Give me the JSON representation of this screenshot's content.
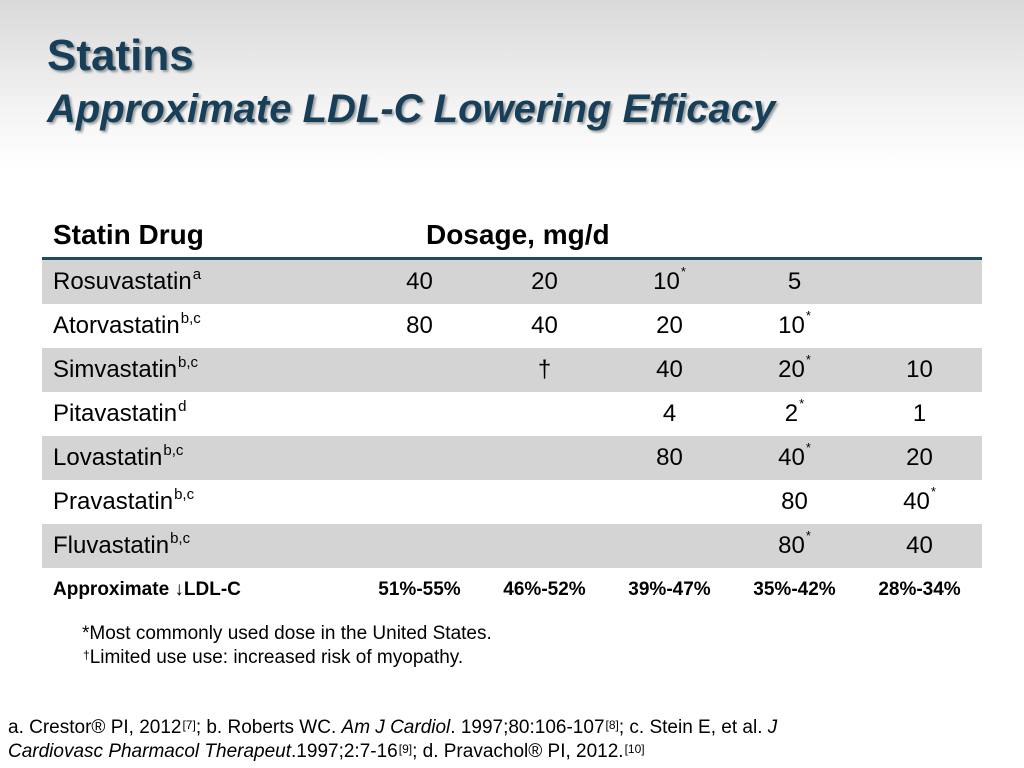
{
  "title": {
    "line1": "Statins",
    "line2": "Approximate LDL-C Lowering Efficacy"
  },
  "table": {
    "header_drug": "Statin Drug",
    "header_dosage": "Dosage, mg/d",
    "rows": [
      {
        "drug": "Rosuvastatin",
        "sup": "a",
        "doses": [
          "40",
          "20",
          "10",
          "5",
          ""
        ],
        "starred": [
          false,
          false,
          true,
          false,
          false
        ],
        "shaded": true
      },
      {
        "drug": "Atorvastatin",
        "sup": "b,c",
        "doses": [
          "80",
          "40",
          "20",
          "10",
          ""
        ],
        "starred": [
          false,
          false,
          false,
          true,
          false
        ],
        "shaded": false
      },
      {
        "drug": "Simvastatin",
        "sup": "b,c",
        "doses": [
          "",
          "†",
          "40",
          "20",
          "10"
        ],
        "starred": [
          false,
          false,
          false,
          true,
          false
        ],
        "shaded": true
      },
      {
        "drug": "Pitavastatin",
        "sup": "d",
        "doses": [
          "",
          "",
          "4",
          "2",
          "1"
        ],
        "starred": [
          false,
          false,
          false,
          true,
          false
        ],
        "shaded": false
      },
      {
        "drug": "Lovastatin",
        "sup": "b,c",
        "doses": [
          "",
          "",
          "80",
          "40",
          "20"
        ],
        "starred": [
          false,
          false,
          false,
          true,
          false
        ],
        "shaded": true
      },
      {
        "drug": "Pravastatin",
        "sup": "b,c",
        "doses": [
          "",
          "",
          "",
          "80",
          "40"
        ],
        "starred": [
          false,
          false,
          false,
          false,
          true
        ],
        "shaded": false
      },
      {
        "drug": "Fluvastatin",
        "sup": "b,c",
        "doses": [
          "",
          "",
          "",
          "80",
          "40"
        ],
        "starred": [
          false,
          false,
          false,
          true,
          false
        ],
        "shaded": true
      }
    ],
    "summary_label": "Approximate ↓LDL-C",
    "summary_values": [
      "51%-55%",
      "46%-52%",
      "39%-47%",
      "35%-42%",
      "28%-34%"
    ],
    "star_mark": "*"
  },
  "footnotes": {
    "star_note": "*Most commonly used dose in the United States.",
    "dagger_mark": "†",
    "dagger_note": "Limited use use: increased risk of myopathy."
  },
  "references": {
    "line1": {
      "a": "a. Crestor® PI, 2012",
      "a_ref": "[7]",
      "b_pre": "; b. Roberts WC. ",
      "b_journal": "Am J Cardiol",
      "b_post": ". 1997;80:106-107",
      "b_ref": "[8]",
      "c_pre": "; c. Stein E, et al. ",
      "c_journal_start": "J"
    },
    "line2": {
      "c_journal_end": "Cardiovasc Pharmacol Therapeut",
      "c_post": ".1997;2:7-16",
      "c_ref": "[9]",
      "d": "; d. Pravachol® PI, 2012.",
      "d_ref": "[10]"
    }
  }
}
